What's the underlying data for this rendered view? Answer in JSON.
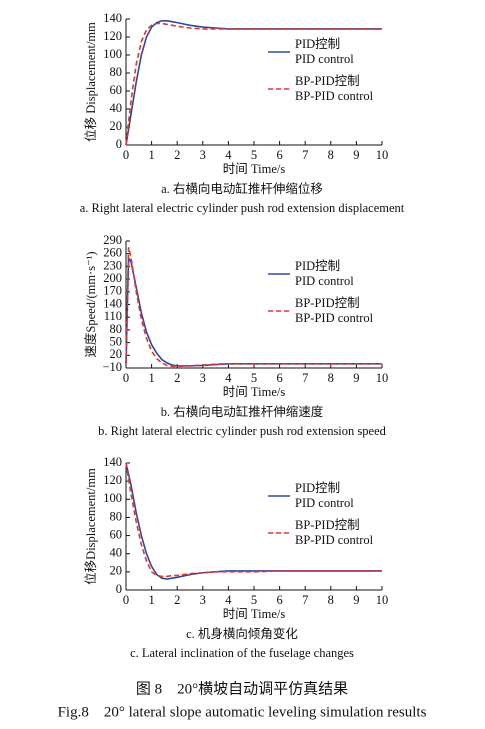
{
  "chart_data": [
    {
      "type": "line",
      "ylabel": "位移 Displacement/mm",
      "xlabel": "时间 Time/s",
      "caption_zh": "a. 右横向电动缸推杆伸缩位移",
      "caption_en": "a. Right lateral electric cylinder push rod extension displacement",
      "x": [
        0,
        0.2,
        0.4,
        0.6,
        0.8,
        1,
        1.2,
        1.4,
        1.6,
        1.8,
        2,
        2.5,
        3,
        3.5,
        4,
        5,
        6,
        7,
        8,
        9,
        10
      ],
      "series": [
        {
          "name": "PID控制",
          "name_en": "PID control",
          "color": "#2f4a9c",
          "dashed": false,
          "values": [
            0,
            35,
            70,
            100,
            120,
            131,
            136,
            138,
            138,
            137,
            136,
            133,
            131,
            130,
            129,
            129,
            129,
            129,
            129,
            129,
            129
          ]
        },
        {
          "name": "BP-PID控制",
          "name_en": "BP-PID control",
          "color": "#e03535",
          "dashed": true,
          "values": [
            0,
            50,
            90,
            115,
            128,
            133,
            135,
            135,
            134,
            133,
            132,
            130,
            129,
            129,
            129,
            129,
            129,
            129,
            129,
            129,
            129
          ]
        }
      ],
      "xlim": [
        0,
        10
      ],
      "xticks": [
        0,
        1,
        2,
        3,
        4,
        5,
        6,
        7,
        8,
        9,
        10
      ],
      "ylim": [
        0,
        140
      ],
      "yticks": [
        0,
        20,
        40,
        60,
        80,
        100,
        120,
        140
      ]
    },
    {
      "type": "line",
      "ylabel": "速度Speed/(mm·s⁻¹)",
      "xlabel": "时间 Time/s",
      "caption_zh": "b. 右横向电动缸推杆伸缩速度",
      "caption_en": "b. Right lateral electric cylinder push rod extension speed",
      "x": [
        0,
        0.1,
        0.2,
        0.4,
        0.6,
        0.8,
        1,
        1.2,
        1.4,
        1.6,
        1.8,
        2,
        2.5,
        3,
        3.5,
        4,
        5,
        6,
        7,
        8,
        10
      ],
      "series": [
        {
          "name": "PID控制",
          "name_en": "PID control",
          "color": "#2f4a9c",
          "dashed": false,
          "values": [
            0,
            250,
            240,
            180,
            120,
            75,
            45,
            25,
            10,
            2,
            -3,
            -5,
            -5,
            -4,
            -2,
            0,
            0,
            0,
            0,
            0,
            0
          ]
        },
        {
          "name": "BP-PID控制",
          "name_en": "BP-PID control",
          "color": "#e03535",
          "dashed": true,
          "values": [
            0,
            275,
            250,
            170,
            105,
            60,
            30,
            12,
            2,
            -4,
            -6,
            -6,
            -5,
            -3,
            -1,
            0,
            0,
            0,
            0,
            0,
            0
          ]
        }
      ],
      "xlim": [
        0,
        10
      ],
      "xticks": [
        0,
        1,
        2,
        3,
        4,
        5,
        6,
        7,
        8,
        9,
        10
      ],
      "ylim": [
        -10,
        290
      ],
      "yticks": [
        {
          "value": -10,
          "label": "−10"
        },
        20,
        50,
        80,
        110,
        140,
        170,
        200,
        230,
        260,
        290
      ]
    },
    {
      "type": "line",
      "ylabel": "位移Displacement/mm",
      "xlabel": "时间 Time/s",
      "caption_zh": "c. 机身横向倾角变化",
      "caption_en": "c. Lateral inclination of the fuselage changes",
      "x": [
        0,
        0.2,
        0.4,
        0.6,
        0.8,
        1,
        1.2,
        1.4,
        1.6,
        1.8,
        2,
        2.5,
        3,
        3.5,
        4,
        5,
        6,
        7,
        8,
        9,
        10
      ],
      "series": [
        {
          "name": "PID控制",
          "name_en": "PID control",
          "color": "#2f4a9c",
          "dashed": false,
          "values": [
            140,
            115,
            85,
            60,
            40,
            26,
            17,
            13,
            12,
            13,
            14,
            17,
            19,
            20,
            21,
            21,
            21,
            21,
            21,
            21,
            21
          ]
        },
        {
          "name": "BP-PID控制",
          "name_en": "BP-PID control",
          "color": "#e03535",
          "dashed": true,
          "values": [
            140,
            105,
            75,
            50,
            32,
            20,
            16,
            15,
            15,
            16,
            16,
            18,
            19,
            20,
            20,
            20,
            21,
            21,
            21,
            21,
            21
          ]
        }
      ],
      "xlim": [
        0,
        10
      ],
      "xticks": [
        0,
        1,
        2,
        3,
        4,
        5,
        6,
        7,
        8,
        9,
        10
      ],
      "ylim": [
        0,
        140
      ],
      "yticks": [
        0,
        20,
        40,
        60,
        80,
        100,
        120,
        140
      ]
    }
  ],
  "figure_caption_zh": "图 8　20°横坡自动调平仿真结果",
  "figure_caption_en": "Fig.8　20° lateral slope automatic leveling simulation results"
}
